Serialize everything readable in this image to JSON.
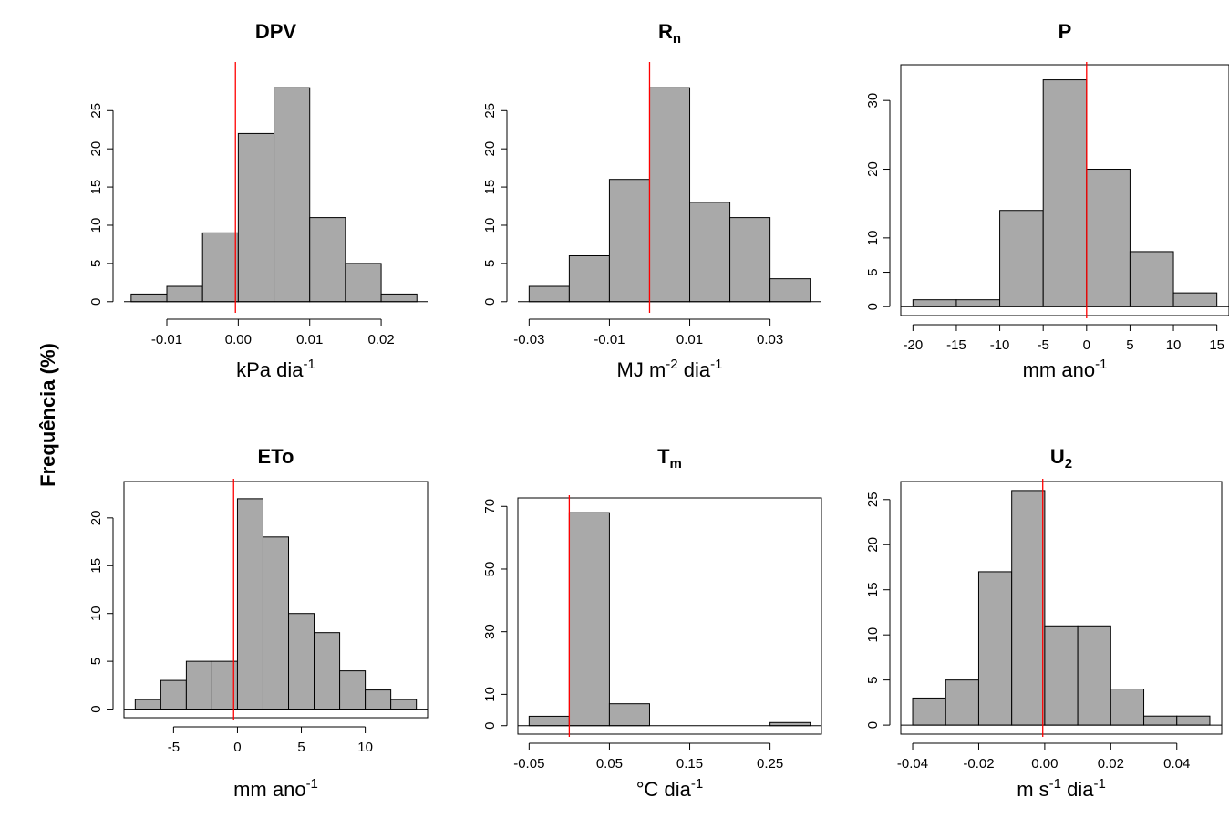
{
  "figure": {
    "ylabel": "Frequência (%)"
  },
  "colors": {
    "bar_fill": "#a9a9a9",
    "bar_stroke": "#000000",
    "zero_line": "#ff0000"
  },
  "chart_data": [
    {
      "type": "bar",
      "title": "DPV",
      "title_main": "DPV",
      "title_sub": "",
      "xlabel_parts": {
        "base": "kPa dia",
        "sup": "-1",
        "tail": ""
      },
      "bin_edges": [
        -0.015,
        -0.01,
        -0.005,
        0.0,
        0.005,
        0.01,
        0.015,
        0.02,
        0.025
      ],
      "values": [
        1,
        2,
        9,
        22,
        28,
        11,
        5,
        1
      ],
      "xticks": [
        -0.01,
        0.0,
        0.01,
        0.02
      ],
      "xtick_labels": [
        "-0.01",
        "0.00",
        "0.01",
        "0.02"
      ],
      "yticks": [
        0,
        5,
        10,
        15,
        20,
        25
      ],
      "ytick_labels": [
        "0",
        "5",
        "10",
        "15",
        "20",
        "25"
      ],
      "xlim": [
        -0.016,
        0.0265
      ],
      "ylim": [
        -1.1,
        31
      ],
      "ref_x": -0.0004,
      "show_box": false
    },
    {
      "type": "bar",
      "title": "Rn",
      "title_main": "R",
      "title_sub": "n",
      "xlabel_parts": {
        "base": "MJ m",
        "sup": "-2",
        "tail": " dia",
        "sup2": "-1"
      },
      "bin_edges": [
        -0.03,
        -0.02,
        -0.01,
        0.0,
        0.01,
        0.02,
        0.03,
        0.04
      ],
      "values": [
        2,
        6,
        16,
        28,
        13,
        11,
        3
      ],
      "xticks": [
        -0.03,
        -0.01,
        0.01,
        0.03
      ],
      "xtick_labels": [
        "-0.03",
        "-0.01",
        "0.01",
        "0.03"
      ],
      "yticks": [
        0,
        5,
        10,
        15,
        20,
        25
      ],
      "ytick_labels": [
        "0",
        "5",
        "10",
        "15",
        "20",
        "25"
      ],
      "xlim": [
        -0.0328,
        0.0428
      ],
      "ylim": [
        -1.1,
        31
      ],
      "ref_x": 0.0,
      "show_box": false
    },
    {
      "type": "bar",
      "title": "P",
      "title_main": "P",
      "title_sub": "",
      "xlabel_parts": {
        "base": "mm ano",
        "sup": "-1",
        "tail": ""
      },
      "bin_edges": [
        -20,
        -15,
        -10,
        -5,
        0,
        5,
        10,
        15
      ],
      "values": [
        1,
        1,
        14,
        33,
        20,
        8,
        2
      ],
      "xticks": [
        -20,
        -15,
        -10,
        -5,
        0,
        5,
        10,
        15
      ],
      "xtick_labels": [
        "-20",
        "-15",
        "-10",
        "-5",
        "0",
        "5",
        "10",
        "15"
      ],
      "yticks": [
        0,
        5,
        10,
        20,
        30
      ],
      "ytick_labels": [
        "0",
        "5",
        "10",
        "20",
        "30"
      ],
      "xlim": [
        -21.4,
        16.4
      ],
      "ylim": [
        -1.3,
        35.2
      ],
      "ref_x": 0,
      "show_box": true
    },
    {
      "type": "bar",
      "title": "ETo",
      "title_main": "ETo",
      "title_sub": "",
      "xlabel_parts": {
        "base": "mm ano",
        "sup": "-1",
        "tail": ""
      },
      "bin_edges": [
        -8,
        -6,
        -4,
        -2,
        0,
        2,
        4,
        6,
        8,
        10,
        12,
        14
      ],
      "values": [
        1,
        3,
        5,
        5,
        22,
        18,
        10,
        8,
        4,
        2,
        1
      ],
      "xticks": [
        -5,
        0,
        5,
        10
      ],
      "xtick_labels": [
        "-5",
        "0",
        "5",
        "10"
      ],
      "yticks": [
        0,
        5,
        10,
        15,
        20
      ],
      "ytick_labels": [
        "0",
        "5",
        "10",
        "15",
        "20"
      ],
      "xlim": [
        -8.88,
        14.88
      ],
      "ylim": [
        -0.9,
        23.8
      ],
      "ref_x": -0.3,
      "show_box": true
    },
    {
      "type": "bar",
      "title": "Tm",
      "title_main": "T",
      "title_sub": "m",
      "xlabel_parts": {
        "base": "°C dia",
        "sup": "-1",
        "tail": ""
      },
      "bin_edges": [
        -0.05,
        0.0,
        0.05,
        0.1,
        0.15,
        0.2,
        0.25,
        0.3
      ],
      "values": [
        3,
        68,
        7,
        0,
        0,
        0,
        1
      ],
      "xticks": [
        -0.05,
        0.05,
        0.15,
        0.25
      ],
      "xtick_labels": [
        "-0.05",
        "0.05",
        "0.15",
        "0.25"
      ],
      "yticks": [
        0,
        10,
        30,
        50,
        70
      ],
      "ytick_labels": [
        "0",
        "10",
        "30",
        "50",
        "70"
      ],
      "xlim": [
        -0.064,
        0.314
      ],
      "ylim": [
        -2.7,
        72.7
      ],
      "ref_x": 0.0,
      "show_box": true
    },
    {
      "type": "bar",
      "title": "U2",
      "title_main": "U",
      "title_sub": "2",
      "xlabel_parts": {
        "base": "m s",
        "sup": "-1",
        "tail": " dia",
        "sup2": "-1"
      },
      "bin_edges": [
        -0.04,
        -0.03,
        -0.02,
        -0.01,
        0.0,
        0.01,
        0.02,
        0.03,
        0.04,
        0.05
      ],
      "values": [
        3,
        5,
        17,
        26,
        11,
        11,
        4,
        1,
        1
      ],
      "xticks": [
        -0.04,
        -0.02,
        0.0,
        0.02,
        0.04
      ],
      "xtick_labels": [
        "-0.04",
        "-0.02",
        "0.00",
        "0.02",
        "0.04"
      ],
      "yticks": [
        0,
        5,
        10,
        15,
        20,
        25
      ],
      "ytick_labels": [
        "0",
        "5",
        "10",
        "15",
        "20",
        "25"
      ],
      "xlim": [
        -0.0436,
        0.0536
      ],
      "ylim": [
        -1.0,
        27.0
      ],
      "ref_x": -0.0006,
      "show_box": true
    }
  ]
}
